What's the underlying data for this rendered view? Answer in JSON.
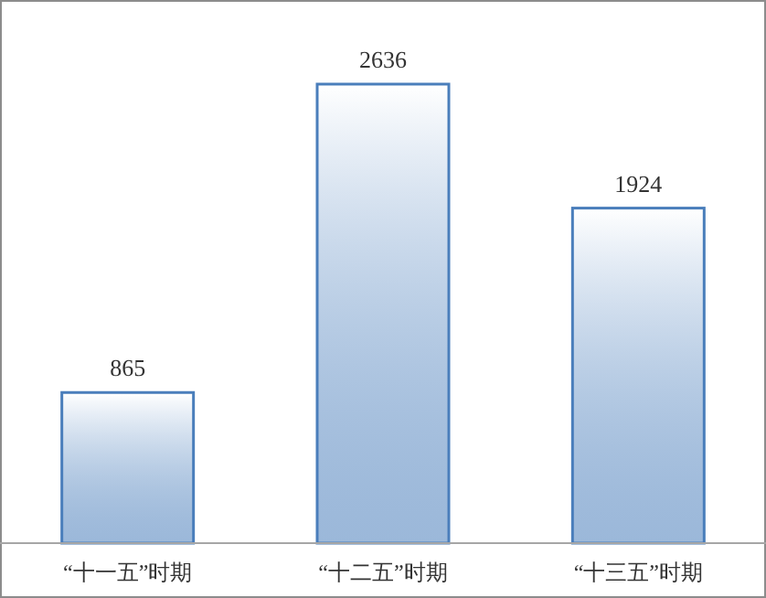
{
  "chart_data": {
    "type": "bar",
    "categories": [
      "“十一五”时期",
      "“十二五”时期",
      "“十三五”时期"
    ],
    "values": [
      865,
      2636,
      1924
    ],
    "color": "#4a7ebb",
    "data_labels": true
  }
}
